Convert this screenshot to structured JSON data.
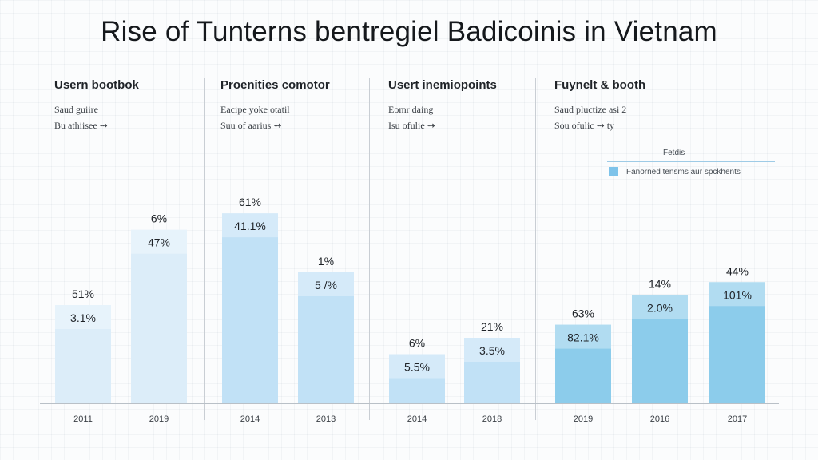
{
  "title": "Rise of Tunterns bentregiel Badicoinis in Vietnam",
  "panels": [
    {
      "title": "Usern bootbok",
      "sub1": "Saud guiire",
      "sub2": "Bu athiisee  ⇝"
    },
    {
      "title": "Proenities comotor",
      "sub1": "Eacipe yoke otatil",
      "sub2": "Suu of aarius  ⇝"
    },
    {
      "title": "Usert inemiopoints",
      "sub1": "Eomr daing",
      "sub2": "Isu ofulie  ⇝"
    },
    {
      "title": "Fuynelt & booth",
      "sub1": "Saud pluctize asi 2",
      "sub2": "Sou ofulic  ⇝  ty"
    }
  ],
  "legend": {
    "title": "Fetdis",
    "label": "Fanorned tensms aur spckhents"
  },
  "colors": {
    "lightest": "#dcedf9",
    "light": "#c1e1f6",
    "medium": "#8ccceb",
    "divider": "#c9ced4"
  },
  "chart_data": {
    "type": "bar",
    "categories": [
      "2011",
      "2019",
      "2014",
      "2013",
      "2014",
      "2018",
      "2019",
      "2016",
      "2017"
    ],
    "values": [
      30,
      53,
      58,
      40,
      15,
      20,
      24,
      33,
      37
    ],
    "top_labels": [
      "51%",
      "6%",
      "61%",
      "1%",
      "6%",
      "21%",
      "63%",
      "14%",
      "44%"
    ],
    "inner_labels": [
      "3.1%",
      "47%",
      "41.1%",
      "5 /%",
      "5.5%",
      "3.5%",
      "82.1%",
      "2.0%",
      "101%"
    ],
    "legend_placement": "top-right"
  }
}
